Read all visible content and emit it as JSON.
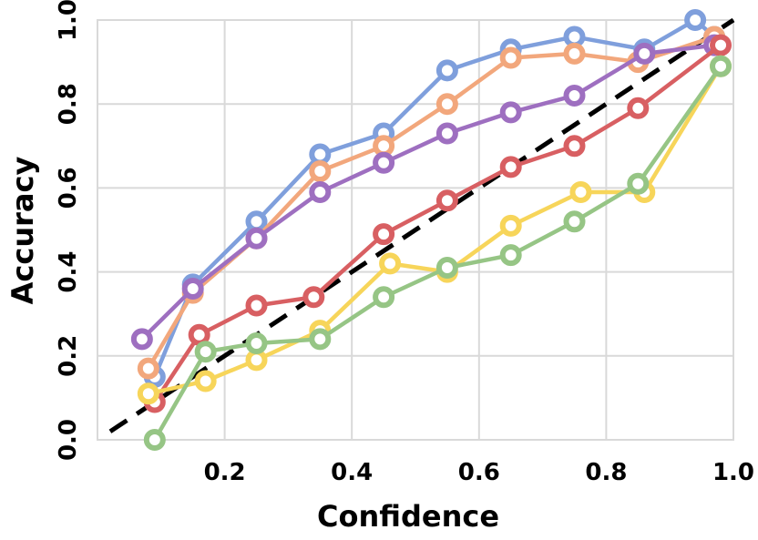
{
  "chart_data": {
    "type": "line",
    "xlabel": "Confidence",
    "ylabel": "Accuracy",
    "xlim": [
      0.0,
      1.0
    ],
    "ylim": [
      0.0,
      1.0
    ],
    "x_ticks": [
      "0.2",
      "0.4",
      "0.6",
      "0.8",
      "1.0"
    ],
    "y_ticks": [
      "0.0",
      "0.2",
      "0.4",
      "0.6",
      "0.8",
      "1.0"
    ],
    "grid": true,
    "legend": "none",
    "diagonal": {
      "style": "dashed",
      "color": "#000000",
      "from": [
        0.02,
        0.02
      ],
      "to": [
        1.0,
        1.0
      ]
    },
    "series": [
      {
        "color": "#7f9fdc",
        "x": [
          0.09,
          0.15,
          0.25,
          0.35,
          0.45,
          0.55,
          0.65,
          0.75,
          0.86,
          0.94,
          0.97
        ],
        "y": [
          0.15,
          0.37,
          0.52,
          0.68,
          0.73,
          0.88,
          0.93,
          0.96,
          0.93,
          1.0,
          0.96
        ]
      },
      {
        "color": "#f2a77c",
        "x": [
          0.08,
          0.15,
          0.25,
          0.35,
          0.45,
          0.55,
          0.65,
          0.75,
          0.85,
          0.97
        ],
        "y": [
          0.17,
          0.35,
          0.48,
          0.64,
          0.7,
          0.8,
          0.91,
          0.92,
          0.9,
          0.96
        ]
      },
      {
        "color": "#9e6fc0",
        "x": [
          0.07,
          0.15,
          0.25,
          0.35,
          0.45,
          0.55,
          0.65,
          0.75,
          0.86,
          0.97
        ],
        "y": [
          0.24,
          0.36,
          0.48,
          0.59,
          0.66,
          0.73,
          0.78,
          0.82,
          0.92,
          0.94
        ]
      },
      {
        "color": "#d85f62",
        "x": [
          0.09,
          0.16,
          0.25,
          0.34,
          0.45,
          0.55,
          0.65,
          0.75,
          0.85,
          0.98
        ],
        "y": [
          0.09,
          0.25,
          0.32,
          0.34,
          0.49,
          0.57,
          0.65,
          0.7,
          0.79,
          0.94
        ]
      },
      {
        "color": "#f7d55a",
        "x": [
          0.08,
          0.17,
          0.25,
          0.35,
          0.46,
          0.55,
          0.65,
          0.76,
          0.86,
          0.98
        ],
        "y": [
          0.11,
          0.14,
          0.19,
          0.26,
          0.42,
          0.4,
          0.51,
          0.59,
          0.59,
          0.89
        ]
      },
      {
        "color": "#96c585",
        "x": [
          0.09,
          0.17,
          0.25,
          0.35,
          0.45,
          0.55,
          0.65,
          0.75,
          0.85,
          0.98
        ],
        "y": [
          0.0,
          0.21,
          0.23,
          0.24,
          0.34,
          0.41,
          0.44,
          0.52,
          0.61,
          0.89
        ]
      }
    ]
  }
}
